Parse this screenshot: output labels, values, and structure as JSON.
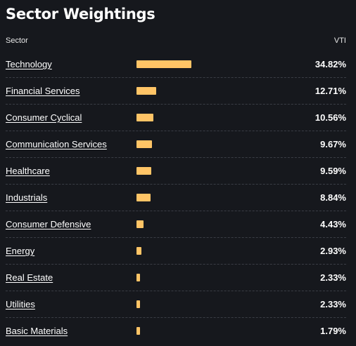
{
  "title": "Sector Weightings",
  "header": {
    "sector_label": "Sector",
    "fund_label": "VTI"
  },
  "colors": {
    "background": "#16181d",
    "bar": "#ffc466",
    "divider": "#3a3d45"
  },
  "sectors": [
    {
      "name": "Technology",
      "pct": "34.82%",
      "value": 34.82
    },
    {
      "name": "Financial Services",
      "pct": "12.71%",
      "value": 12.71
    },
    {
      "name": "Consumer Cyclical",
      "pct": "10.56%",
      "value": 10.56
    },
    {
      "name": "Communication Services",
      "pct": "9.67%",
      "value": 9.67
    },
    {
      "name": "Healthcare",
      "pct": "9.59%",
      "value": 9.59
    },
    {
      "name": "Industrials",
      "pct": "8.84%",
      "value": 8.84
    },
    {
      "name": "Consumer Defensive",
      "pct": "4.43%",
      "value": 4.43
    },
    {
      "name": "Energy",
      "pct": "2.93%",
      "value": 2.93
    },
    {
      "name": "Real Estate",
      "pct": "2.33%",
      "value": 2.33
    },
    {
      "name": "Utilities",
      "pct": "2.33%",
      "value": 2.33
    },
    {
      "name": "Basic Materials",
      "pct": "1.79%",
      "value": 1.79
    }
  ]
}
